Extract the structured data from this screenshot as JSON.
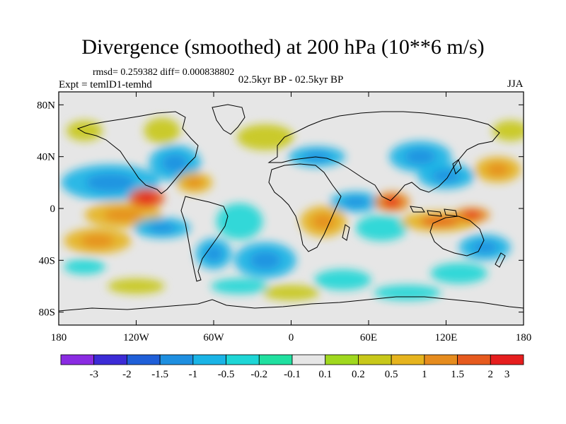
{
  "title": "Divergence (smoothed) at 200 hPa (10**6 m/s)",
  "stats": "rmsd= 0.259382 diff= 0.000838802",
  "experiment": "Expt = temlD1-temhd",
  "period": "02.5kyr BP - 02.5kyr BP",
  "season": "JJA",
  "map": {
    "lat_labels": [
      {
        "lat": 80,
        "label": "80N"
      },
      {
        "lat": 40,
        "label": "40N"
      },
      {
        "lat": 0,
        "label": "0"
      },
      {
        "lat": -40,
        "label": "40S"
      },
      {
        "lat": -80,
        "label": "80S"
      }
    ],
    "lon_labels": [
      {
        "lon": -180,
        "label": "180"
      },
      {
        "lon": -120,
        "label": "120W"
      },
      {
        "lon": -60,
        "label": "60W"
      },
      {
        "lon": 0,
        "label": "0"
      },
      {
        "lon": 60,
        "label": "60E"
      },
      {
        "lon": 120,
        "label": "120E"
      },
      {
        "lon": 180,
        "label": "180"
      }
    ]
  },
  "colorbar": {
    "colors": [
      "#8a2be2",
      "#3c2bd6",
      "#1f5fd8",
      "#1e8fe0",
      "#1ab4e6",
      "#1ed6d6",
      "#20e0a0",
      "#e6e6e6",
      "#a0d81e",
      "#c8c81a",
      "#e6b41e",
      "#e68c1e",
      "#e65a1e",
      "#e61e1e"
    ],
    "labels": [
      "-3",
      "-2",
      "-1.5",
      "-1",
      "-0.5",
      "-0.2",
      "-0.1",
      "0.1",
      "0.2",
      "0.5",
      "1",
      "1.5",
      "2",
      "3"
    ]
  },
  "blobs": [
    {
      "lon": -140,
      "lat": 20,
      "w": 38,
      "h": 14,
      "v": -0.8
    },
    {
      "lon": -130,
      "lat": -5,
      "w": 30,
      "h": 10,
      "v": 0.6
    },
    {
      "lon": -112,
      "lat": 8,
      "w": 14,
      "h": 8,
      "v": 1.6
    },
    {
      "lon": -100,
      "lat": -15,
      "w": 22,
      "h": 8,
      "v": -0.6
    },
    {
      "lon": -150,
      "lat": -25,
      "w": 26,
      "h": 10,
      "v": 0.7
    },
    {
      "lon": -160,
      "lat": -45,
      "w": 16,
      "h": 6,
      "v": -0.3
    },
    {
      "lon": -90,
      "lat": 35,
      "w": 20,
      "h": 14,
      "v": -0.7
    },
    {
      "lon": -75,
      "lat": 20,
      "w": 14,
      "h": 8,
      "v": 0.6
    },
    {
      "lon": -60,
      "lat": -35,
      "w": 14,
      "h": 12,
      "v": -0.6
    },
    {
      "lon": -40,
      "lat": -10,
      "w": 18,
      "h": 14,
      "v": -0.5
    },
    {
      "lon": -20,
      "lat": -40,
      "w": 24,
      "h": 14,
      "v": -0.6
    },
    {
      "lon": -100,
      "lat": 60,
      "w": 14,
      "h": 10,
      "v": 0.3
    },
    {
      "lon": -20,
      "lat": 55,
      "w": 22,
      "h": 10,
      "v": 0.5
    },
    {
      "lon": 20,
      "lat": 40,
      "w": 22,
      "h": 8,
      "v": -0.6
    },
    {
      "lon": 25,
      "lat": -10,
      "w": 18,
      "h": 12,
      "v": 0.8
    },
    {
      "lon": 50,
      "lat": 5,
      "w": 20,
      "h": 8,
      "v": -0.6
    },
    {
      "lon": 70,
      "lat": -15,
      "w": 20,
      "h": 10,
      "v": -0.5
    },
    {
      "lon": 78,
      "lat": 5,
      "w": 14,
      "h": 8,
      "v": 1.5
    },
    {
      "lon": 100,
      "lat": 40,
      "w": 24,
      "h": 12,
      "v": -0.6
    },
    {
      "lon": 120,
      "lat": 25,
      "w": 22,
      "h": 10,
      "v": -0.7
    },
    {
      "lon": 115,
      "lat": -10,
      "w": 30,
      "h": 8,
      "v": 1.0
    },
    {
      "lon": 140,
      "lat": -5,
      "w": 14,
      "h": 6,
      "v": 1.5
    },
    {
      "lon": 160,
      "lat": 30,
      "w": 18,
      "h": 10,
      "v": 0.9
    },
    {
      "lon": 150,
      "lat": -30,
      "w": 20,
      "h": 10,
      "v": -0.6
    },
    {
      "lon": 130,
      "lat": -50,
      "w": 22,
      "h": 8,
      "v": -0.5
    },
    {
      "lon": 40,
      "lat": -55,
      "w": 22,
      "h": 8,
      "v": -0.5
    },
    {
      "lon": -120,
      "lat": -60,
      "w": 22,
      "h": 6,
      "v": 0.4
    },
    {
      "lon": 90,
      "lat": -65,
      "w": 26,
      "h": 6,
      "v": -0.5
    },
    {
      "lon": -40,
      "lat": -60,
      "w": 22,
      "h": 6,
      "v": -0.4
    },
    {
      "lon": 170,
      "lat": 60,
      "w": 14,
      "h": 8,
      "v": 0.5
    },
    {
      "lon": -160,
      "lat": 60,
      "w": 14,
      "h": 8,
      "v": 0.4
    },
    {
      "lon": 0,
      "lat": -65,
      "w": 22,
      "h": 6,
      "v": 0.3
    }
  ]
}
